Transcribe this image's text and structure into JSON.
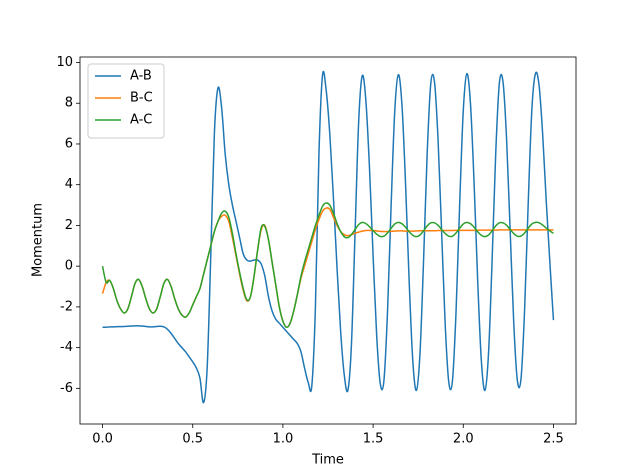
{
  "chart_data": {
    "type": "line",
    "xlabel": "Time",
    "ylabel": "Momentum",
    "xlim": [
      -0.125,
      2.625
    ],
    "ylim": [
      -7.75,
      10.27
    ],
    "xticks": [
      {
        "value": 0,
        "label": "0.0"
      },
      {
        "value": 0.5,
        "label": "0.5"
      },
      {
        "value": 1,
        "label": "1.0"
      },
      {
        "value": 1.5,
        "label": "1.5"
      },
      {
        "value": 2,
        "label": "2.0"
      },
      {
        "value": 2.5,
        "label": "2.5"
      }
    ],
    "yticks": [
      -6,
      -4,
      -2,
      0,
      2,
      4,
      6,
      8,
      10
    ],
    "legend": "upper left",
    "x": [
      0,
      0.02,
      0.04,
      0.06,
      0.08,
      0.1,
      0.12,
      0.14,
      0.16,
      0.18,
      0.2,
      0.22,
      0.24,
      0.26,
      0.28,
      0.3,
      0.32,
      0.34,
      0.36,
      0.38,
      0.4,
      0.42,
      0.44,
      0.46,
      0.48,
      0.5,
      0.52,
      0.54,
      0.56,
      0.58,
      0.6,
      0.62,
      0.64,
      0.66,
      0.68,
      0.7,
      0.72,
      0.74,
      0.76,
      0.78,
      0.8,
      0.82,
      0.84,
      0.86,
      0.88,
      0.9,
      0.92,
      0.94,
      0.96,
      0.98,
      1,
      1.02,
      1.04,
      1.06,
      1.08,
      1.1,
      1.12,
      1.14,
      1.16,
      1.18,
      1.2,
      1.22,
      1.24,
      1.26,
      1.28,
      1.3,
      1.32,
      1.34,
      1.36,
      1.38,
      1.4,
      1.42,
      1.44,
      1.46,
      1.48,
      1.5,
      1.52,
      1.54,
      1.56,
      1.58,
      1.6,
      1.62,
      1.64,
      1.66,
      1.68,
      1.7,
      1.72,
      1.74,
      1.76,
      1.78,
      1.8,
      1.82,
      1.84,
      1.86,
      1.88,
      1.9,
      1.92,
      1.94,
      1.96,
      1.98,
      2,
      2.02,
      2.04,
      2.06,
      2.08,
      2.1,
      2.12,
      2.14,
      2.16,
      2.18,
      2.2,
      2.22,
      2.24,
      2.26,
      2.28,
      2.3,
      2.32,
      2.34,
      2.36,
      2.38,
      2.4,
      2.42,
      2.44,
      2.46,
      2.48,
      2.5
    ],
    "series": [
      {
        "name": "A-B",
        "color": "#1f77b4",
        "values": [
          -3.0,
          -3.0,
          -2.98,
          -2.98,
          -2.97,
          -2.97,
          -2.96,
          -2.95,
          -2.94,
          -2.93,
          -2.93,
          -2.94,
          -2.96,
          -2.98,
          -2.98,
          -2.96,
          -2.95,
          -2.98,
          -3.1,
          -3.3,
          -3.55,
          -3.8,
          -4.0,
          -4.2,
          -4.45,
          -4.7,
          -5.0,
          -5.5,
          -6.7,
          -5.0,
          0.5,
          6.5,
          8.75,
          7.8,
          5.5,
          4.0,
          3.0,
          2.2,
          1.4,
          0.6,
          0.3,
          0.25,
          0.3,
          0.3,
          0.1,
          -0.5,
          -1.5,
          -2.2,
          -2.6,
          -2.8,
          -3.0,
          -3.2,
          -3.4,
          -3.6,
          -3.8,
          -4.2,
          -5.0,
          -5.7,
          -5.9,
          -2.08,
          5.58,
          9.4,
          8.63,
          6.48,
          3.37,
          -0.07,
          -3.18,
          -5.33,
          -6.1,
          -3.84,
          1.63,
          7.09,
          9.35,
          8.12,
          4.83,
          0.53,
          -3.43,
          -5.78,
          -5.63,
          -2.23,
          2.99,
          7.59,
          9.4,
          7.92,
          4.04,
          -0.74,
          -4.62,
          -6.1,
          -4.28,
          0.32,
          5.56,
          8.98,
          9.07,
          6.25,
          1.68,
          -2.9,
          -5.72,
          -5.63,
          -2.21,
          3.03,
          7.63,
          9.45,
          7.97,
          4.08,
          -0.73,
          -4.61,
          -6.1,
          -4.28,
          0.32,
          5.56,
          8.98,
          9.07,
          6.27,
          1.73,
          -2.82,
          -5.62,
          -5.54,
          -2.14,
          3.07,
          7.64,
          9.45,
          8.9,
          6.5,
          3.2,
          0.2,
          -2.65
        ]
      },
      {
        "name": "B-C",
        "color": "#ff7f0e",
        "values": [
          -1.35,
          -0.8,
          -0.7,
          -1.1,
          -1.7,
          -2.1,
          -2.3,
          -2.1,
          -1.5,
          -0.85,
          -0.65,
          -1.0,
          -1.6,
          -2.1,
          -2.3,
          -2.1,
          -1.5,
          -0.85,
          -0.65,
          -1.0,
          -1.6,
          -2.1,
          -2.4,
          -2.5,
          -2.3,
          -1.9,
          -1.5,
          -1.1,
          -0.4,
          0.3,
          1.0,
          1.7,
          2.2,
          2.45,
          2.5,
          2.2,
          1.4,
          0.5,
          -0.4,
          -1.2,
          -1.7,
          -1.5,
          -0.5,
          0.8,
          1.8,
          2.0,
          1.3,
          0.2,
          -0.9,
          -2.0,
          -2.7,
          -3.0,
          -2.8,
          -2.2,
          -1.4,
          -0.6,
          0.0,
          0.6,
          1.2,
          1.8,
          2.3,
          2.7,
          2.85,
          2.8,
          2.4,
          2.0,
          1.7,
          1.55,
          1.5,
          1.55,
          1.62,
          1.67,
          1.72,
          1.75,
          1.76,
          1.75,
          1.73,
          1.71,
          1.7,
          1.7,
          1.71,
          1.72,
          1.73,
          1.73,
          1.72,
          1.72,
          1.72,
          1.73,
          1.74,
          1.74,
          1.74,
          1.74,
          1.74,
          1.75,
          1.75,
          1.75,
          1.75,
          1.75,
          1.76,
          1.76,
          1.76,
          1.76,
          1.76,
          1.76,
          1.77,
          1.77,
          1.77,
          1.77,
          1.77,
          1.77,
          1.78,
          1.78,
          1.78,
          1.78,
          1.78,
          1.78,
          1.78,
          1.78,
          1.78,
          1.78,
          1.78,
          1.78,
          1.78,
          1.78,
          1.78,
          1.78
        ]
      },
      {
        "name": "A-C",
        "color": "#2ca02c",
        "values": [
          0.0,
          -0.8,
          -0.7,
          -1.1,
          -1.7,
          -2.1,
          -2.3,
          -2.1,
          -1.5,
          -0.85,
          -0.65,
          -1.0,
          -1.6,
          -2.1,
          -2.3,
          -2.1,
          -1.5,
          -0.85,
          -0.65,
          -1.0,
          -1.6,
          -2.1,
          -2.4,
          -2.5,
          -2.3,
          -1.9,
          -1.5,
          -1.1,
          -0.4,
          0.3,
          1.0,
          1.7,
          2.2,
          2.6,
          2.7,
          2.4,
          1.6,
          0.6,
          -0.3,
          -1.1,
          -1.65,
          -1.5,
          -0.5,
          0.8,
          1.9,
          1.95,
          1.3,
          0.2,
          -0.9,
          -2.0,
          -2.7,
          -3.0,
          -2.8,
          -2.2,
          -1.4,
          -0.5,
          0.2,
          0.8,
          1.4,
          2.0,
          2.5,
          2.95,
          3.1,
          3.0,
          2.6,
          2.1,
          1.7,
          1.45,
          1.4,
          1.55,
          1.8,
          2.04,
          2.15,
          2.09,
          1.94,
          1.75,
          1.57,
          1.46,
          1.47,
          1.63,
          1.86,
          2.07,
          2.15,
          2.08,
          1.91,
          1.69,
          1.52,
          1.45,
          1.53,
          1.74,
          1.98,
          2.13,
          2.13,
          2.01,
          1.8,
          1.6,
          1.47,
          1.47,
          1.63,
          1.86,
          2.07,
          2.15,
          2.08,
          1.91,
          1.69,
          1.52,
          1.45,
          1.53,
          1.74,
          1.98,
          2.13,
          2.13,
          2.01,
          1.8,
          1.6,
          1.47,
          1.48,
          1.63,
          1.86,
          2.07,
          2.15,
          2.13,
          2.02,
          1.87,
          1.73,
          1.61
        ]
      }
    ]
  }
}
